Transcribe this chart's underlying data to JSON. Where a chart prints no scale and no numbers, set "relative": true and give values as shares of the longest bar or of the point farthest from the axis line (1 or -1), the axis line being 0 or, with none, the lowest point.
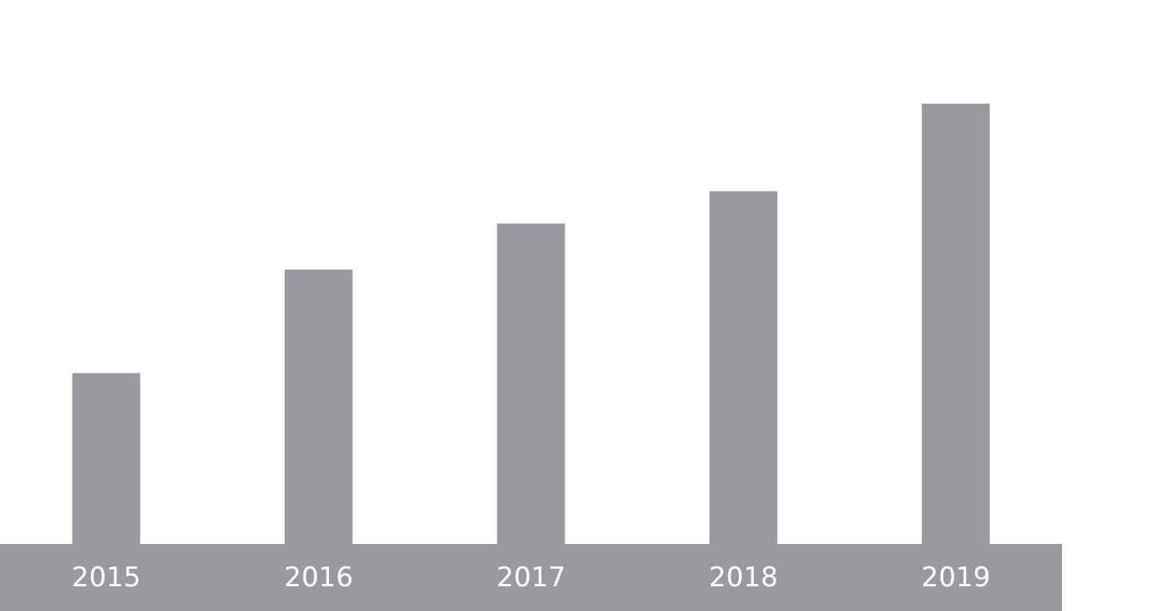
{
  "chart_data": {
    "type": "bar",
    "relative": true,
    "categories": [
      "2015",
      "2016",
      "2017",
      "2018",
      "2019"
    ],
    "values": [
      0.388,
      0.623,
      0.728,
      0.801,
      1
    ],
    "color": "#9a999f",
    "grid": false,
    "legend": false
  }
}
